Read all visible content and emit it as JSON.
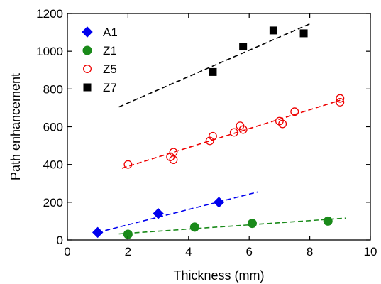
{
  "chart_data": {
    "type": "scatter",
    "title": "",
    "xlabel": "Thickness (mm)",
    "ylabel": "Path enhancement",
    "xlim": [
      0,
      10
    ],
    "ylim": [
      0,
      1200
    ],
    "xticks": [
      0,
      2,
      4,
      6,
      8,
      10
    ],
    "yticks": [
      0,
      200,
      400,
      600,
      800,
      1000,
      1200
    ],
    "grid": false,
    "legend_position": "top-left",
    "series": [
      {
        "name": "A1",
        "marker": "diamond",
        "filled": true,
        "color": "#0000ee",
        "x": [
          1,
          3,
          5
        ],
        "y": [
          40,
          140,
          200
        ],
        "trendline": {
          "x": [
            1,
            6.3
          ],
          "y": [
            40,
            255
          ]
        }
      },
      {
        "name": "Z1",
        "marker": "circle",
        "filled": true,
        "color": "#1a8a1a",
        "x": [
          2,
          4.2,
          6.1,
          8.6
        ],
        "y": [
          30,
          68,
          88,
          100
        ],
        "trendline": {
          "x": [
            1.7,
            9.2
          ],
          "y": [
            32,
            116
          ]
        }
      },
      {
        "name": "Z5",
        "marker": "circle",
        "filled": false,
        "color": "#ee0000",
        "x": [
          2,
          3.4,
          3.5,
          3.5,
          4.7,
          4.8,
          5.5,
          5.7,
          5.8,
          7,
          7.1,
          7.5,
          9,
          9
        ],
        "y": [
          400,
          440,
          425,
          465,
          525,
          550,
          570,
          605,
          585,
          630,
          615,
          680,
          750,
          730
        ],
        "trendline": {
          "x": [
            1.8,
            9
          ],
          "y": [
            380,
            740
          ]
        }
      },
      {
        "name": "Z7",
        "marker": "square",
        "filled": true,
        "color": "#000000",
        "x": [
          4.8,
          5.8,
          6.8,
          7.8
        ],
        "y": [
          890,
          1025,
          1110,
          1095
        ],
        "trendline": {
          "x": [
            1.7,
            8
          ],
          "y": [
            705,
            1145
          ]
        }
      }
    ]
  }
}
